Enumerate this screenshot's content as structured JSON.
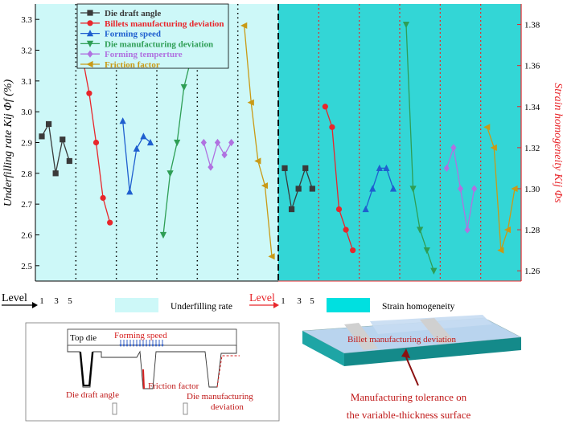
{
  "chart_data": [
    {
      "type": "line",
      "panel": "underfilling",
      "ylabel": "Underfilling rate Kij Φf (%)",
      "ylim": [
        2.45,
        3.35
      ],
      "yticks": [
        2.5,
        2.6,
        2.7,
        2.8,
        2.9,
        3.0,
        3.1,
        3.2,
        3.3
      ],
      "level_label": "Level",
      "level_ticks": [
        "1",
        "3",
        "5"
      ],
      "background_legend": "Underfilling rate",
      "series": [
        {
          "name": "Die draft angle",
          "color": "#3a3a3a",
          "marker": "square",
          "values": [
            2.92,
            2.96,
            2.8,
            2.91,
            2.84
          ]
        },
        {
          "name": "Billets manufacturing deviation",
          "color": "#e8262b",
          "marker": "circle",
          "values": [
            3.18,
            3.06,
            2.9,
            2.72,
            2.64
          ]
        },
        {
          "name": "Forming speed",
          "color": "#1f5fcf",
          "marker": "triangle-up",
          "values": [
            2.97,
            2.74,
            2.88,
            2.92,
            2.9
          ]
        },
        {
          "name": "Die manufacturing deviation",
          "color": "#2e9e55",
          "marker": "triangle-down",
          "values": [
            2.6,
            2.8,
            2.9,
            3.08,
            3.17
          ]
        },
        {
          "name": "Forming temperture",
          "color": "#b072e0",
          "marker": "diamond",
          "values": [
            2.9,
            2.82,
            2.9,
            2.86,
            2.9
          ]
        },
        {
          "name": "Friction factor",
          "color": "#c99a16",
          "marker": "triangle-left",
          "values": [
            3.28,
            3.03,
            2.84,
            2.76,
            2.53
          ]
        }
      ]
    },
    {
      "type": "line",
      "panel": "strain-homogeneity",
      "ylabel": "Strain homogeneity Kij Φs",
      "ylim": [
        1.255,
        1.39
      ],
      "yticks": [
        1.26,
        1.28,
        1.3,
        1.32,
        1.34,
        1.36,
        1.38
      ],
      "level_label": "Level",
      "level_ticks": [
        "1",
        "3",
        "5"
      ],
      "background_legend": "Strain homogeneity",
      "series": [
        {
          "name": "Die draft angle",
          "color": "#3a3a3a",
          "marker": "square",
          "values": [
            1.31,
            1.29,
            1.3,
            1.31,
            1.3
          ]
        },
        {
          "name": "Billets manufacturing deviation",
          "color": "#e8262b",
          "marker": "circle",
          "values": [
            1.34,
            1.33,
            1.29,
            1.28,
            1.27
          ]
        },
        {
          "name": "Forming speed",
          "color": "#1f5fcf",
          "marker": "triangle-up",
          "values": [
            1.29,
            1.3,
            1.31,
            1.31,
            1.3
          ]
        },
        {
          "name": "Die manufacturing deviation",
          "color": "#2e9e55",
          "marker": "triangle-down",
          "values": [
            1.38,
            1.3,
            1.28,
            1.27,
            1.26
          ]
        },
        {
          "name": "Forming temperture",
          "color": "#b072e0",
          "marker": "diamond",
          "values": [
            1.31,
            1.32,
            1.3,
            1.28,
            1.3
          ]
        },
        {
          "name": "Friction factor",
          "color": "#c99a16",
          "marker": "triangle-left",
          "values": [
            1.33,
            1.32,
            1.27,
            1.28,
            1.3
          ]
        }
      ]
    }
  ],
  "diagram_left": {
    "top_die": "Top die",
    "forming_speed": "Forming speed",
    "die_draft_angle": "Die draft angle",
    "friction_factor": "Friction factor",
    "die_manufacturing_deviation_1": "Die manufacturing",
    "die_manufacturing_deviation_2": "deviation"
  },
  "diagram_right": {
    "billet_deviation": "Billet manufacturing deviation",
    "tolerance_1": "Manufacturing tolerance on",
    "tolerance_2": "the variable-thickness surface"
  },
  "colors": {
    "left_bg": "#cdf8f8",
    "right_bg": "#33d6d6",
    "right_axis": "#e8262b"
  }
}
